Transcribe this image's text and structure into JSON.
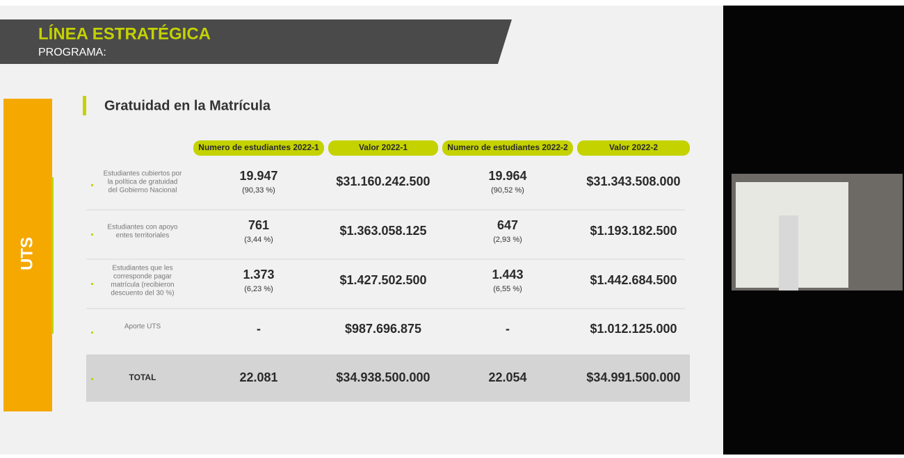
{
  "header": {
    "title": "LÍNEA ESTRATÉGICA",
    "subtitle": "PROGRAMA:"
  },
  "side_label": "UTS",
  "section_title": "Gratuidad en la Matrícula",
  "table": {
    "columns": [
      "Numero de estudiantes 2022-1",
      "Valor 2022-1",
      "Numero de estudiantes 2022-2",
      "Valor 2022-2"
    ],
    "rows": [
      {
        "label": [
          "Estudiantes cubiertos por",
          "la política de gratuidad",
          "del Gobierno Nacional"
        ],
        "cells": [
          {
            "main": "19.947",
            "sub": "(90,33 %)"
          },
          {
            "main": "$31.160.242.500"
          },
          {
            "main": "19.964",
            "sub": "(90,52 %)"
          },
          {
            "main": "$31.343.508.000"
          }
        ]
      },
      {
        "label": [
          "Estudiantes con apoyo",
          "entes territoriales"
        ],
        "cells": [
          {
            "main": "761",
            "sub": "(3,44 %)"
          },
          {
            "main": "$1.363.058.125"
          },
          {
            "main": "647",
            "sub": "(2,93 %)"
          },
          {
            "main": "$1.193.182.500"
          }
        ]
      },
      {
        "label": [
          "Estudiantes que les",
          "corresponde pagar",
          "matrícula (recibieron",
          "descuento del 30 %)"
        ],
        "cells": [
          {
            "main": "1.373",
            "sub": "(6,23 %)"
          },
          {
            "main": "$1.427.502.500"
          },
          {
            "main": "1.443",
            "sub": "(6,55 %)"
          },
          {
            "main": "$1.442.684.500"
          }
        ]
      },
      {
        "label": [
          "Aporte UTS"
        ],
        "cells": [
          {
            "main": "-"
          },
          {
            "main": "$987.696.875"
          },
          {
            "main": "-"
          },
          {
            "main": "$1.012.125.000"
          }
        ]
      },
      {
        "label": [
          "TOTAL"
        ],
        "cells": [
          {
            "main": "22.081"
          },
          {
            "main": "$34.938.500.000"
          },
          {
            "main": "22.054"
          },
          {
            "main": "$34.991.500.000"
          }
        ]
      }
    ]
  }
}
